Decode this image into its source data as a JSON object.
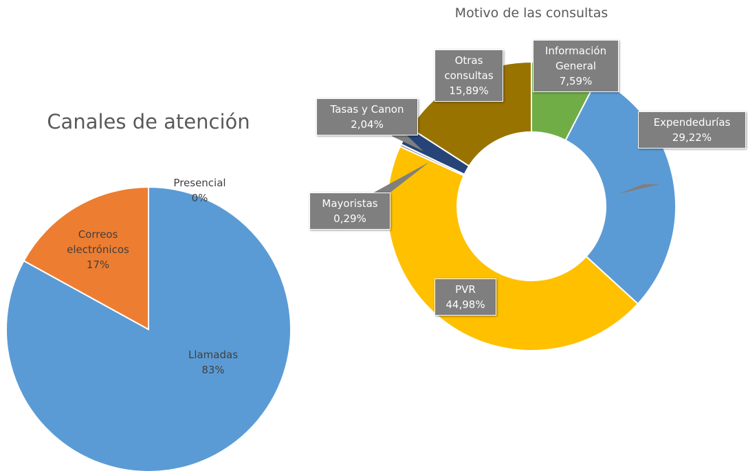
{
  "chart_data": [
    {
      "type": "pie",
      "title": "Canales de atención",
      "categories": [
        "Llamadas",
        "Correos electrónicos",
        "Presencial"
      ],
      "values": [
        83,
        17,
        0
      ],
      "value_labels": [
        "83%",
        "17%",
        "0%"
      ],
      "colors": [
        "#5b9bd5",
        "#ed7d31",
        "#a5a5a5"
      ]
    },
    {
      "type": "doughnut",
      "title": "Motivo de las consultas",
      "categories": [
        "Información General",
        "Expendedurías",
        "PVR",
        "Mayoristas",
        "Tasas y Canon",
        "Otras consultas"
      ],
      "values": [
        7.59,
        29.22,
        44.98,
        0.29,
        2.04,
        15.89
      ],
      "value_labels": [
        "7,59%",
        "29,22%",
        "44,98%",
        "0,29%",
        "2,04%",
        "15,89%"
      ],
      "colors": [
        "#70ad47",
        "#5b9bd5",
        "#ffc000",
        "#a5a5a5",
        "#264478",
        "#997300"
      ]
    }
  ]
}
